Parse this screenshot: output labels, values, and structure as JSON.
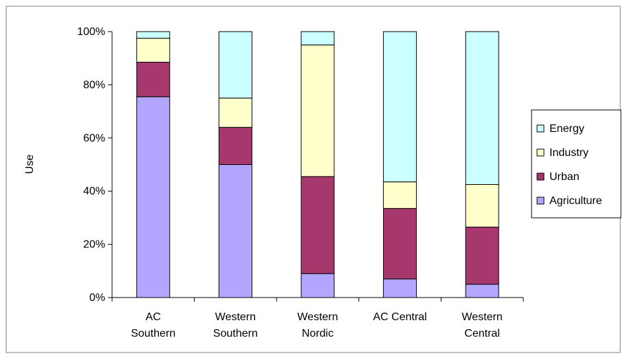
{
  "chart_data": {
    "type": "bar",
    "stacked": true,
    "percent_scale": true,
    "title": "",
    "xlabel": "",
    "ylabel": "Use",
    "ylim": [
      0,
      100
    ],
    "yticks": [
      "0%",
      "20%",
      "40%",
      "60%",
      "80%",
      "100%"
    ],
    "categories": [
      [
        "AC",
        "Southern"
      ],
      [
        "Western",
        "Southern"
      ],
      [
        "Western",
        "Nordic"
      ],
      [
        "AC Central"
      ],
      [
        "Western",
        "Central"
      ]
    ],
    "series": [
      {
        "name": "Agriculture",
        "color": "#b3a6ff",
        "values": [
          75.5,
          50,
          9,
          7,
          5
        ]
      },
      {
        "name": "Urban",
        "color": "#a6386e",
        "values": [
          13,
          14,
          36.5,
          26.5,
          21.5
        ]
      },
      {
        "name": "Industry",
        "color": "#ffffcc",
        "values": [
          9,
          11,
          49.5,
          10,
          16
        ]
      },
      {
        "name": "Energy",
        "color": "#ccffff",
        "values": [
          2.5,
          25,
          5,
          56.5,
          57.5
        ]
      }
    ],
    "legend": {
      "position": "right",
      "order": [
        "Energy",
        "Industry",
        "Urban",
        "Agriculture"
      ]
    },
    "grid": false
  }
}
